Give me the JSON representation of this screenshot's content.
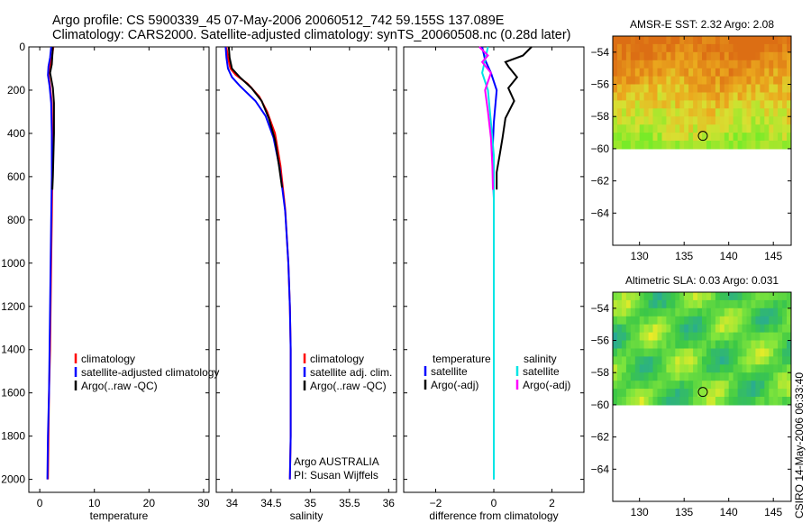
{
  "header": {
    "line1": "Argo profile: CS 5900339_45 07-May-2006 20060512_742 59.155S 137.089E",
    "line2": "Climatology: CARS2000. Satellite-adjusted climatology: synTS_20060508.nc (0.28d later)"
  },
  "side_stamp": "CSIRO 14-May-2006 06:33:40",
  "colors": {
    "clim": "#ff0000",
    "sat": "#0000ff",
    "argo": "#000000",
    "sal_sat": "#00e5e5",
    "sal_argo": "#ff00ff"
  },
  "chart_data": [
    {
      "type": "line",
      "name": "temperature-panel",
      "xlabel": "temperature",
      "xlim": [
        -2,
        31
      ],
      "ylim": [
        2060,
        0
      ],
      "xticks": [
        0,
        10,
        20,
        30
      ],
      "yticks": [
        0,
        200,
        400,
        600,
        800,
        1000,
        1200,
        1400,
        1600,
        1800,
        2000
      ],
      "ytick_labels": [
        "0",
        "200",
        "400",
        "600",
        "800",
        "1000",
        "1200",
        "1400",
        "1600",
        "1800",
        "2000"
      ],
      "legend": [
        "climatology",
        "satellite-adjusted climatology",
        "Argo(..raw -QC)"
      ],
      "series": [
        {
          "name": "climatology",
          "color_key": "clim",
          "x": [
            2.5,
            2.2,
            1.8,
            1.6,
            1.9,
            2.2,
            2.3,
            2.3,
            2.2,
            2.1,
            2.0,
            1.9,
            1.7,
            1.6,
            1.5
          ],
          "y": [
            0,
            50,
            90,
            130,
            180,
            260,
            400,
            600,
            800,
            1000,
            1200,
            1400,
            1600,
            1800,
            2000
          ]
        },
        {
          "name": "satellite-adjusted climatology",
          "color_key": "sat",
          "x": [
            2.1,
            1.9,
            1.6,
            1.5,
            1.8,
            2.1,
            2.2,
            2.2,
            2.1,
            2.0,
            1.9,
            1.8,
            1.7,
            1.5,
            1.4
          ],
          "y": [
            0,
            50,
            90,
            130,
            180,
            260,
            400,
            600,
            800,
            1000,
            1200,
            1400,
            1600,
            1800,
            2000
          ]
        },
        {
          "name": "Argo(..raw -QC)",
          "color_key": "argo",
          "x": [
            2.4,
            2.3,
            2.2,
            1.9,
            2.4,
            2.6,
            2.6,
            2.5,
            2.4,
            2.3
          ],
          "y": [
            0,
            40,
            80,
            120,
            190,
            260,
            400,
            500,
            600,
            660
          ]
        }
      ],
      "annotation": []
    },
    {
      "type": "line",
      "name": "salinity-panel",
      "xlabel": "salinity",
      "xlim": [
        33.8,
        36.1
      ],
      "ylim": [
        2060,
        0
      ],
      "xticks": [
        34,
        34.5,
        35,
        35.5,
        36
      ],
      "ytick_labels": [],
      "legend": [
        "climatology",
        "satellite adj. clim.",
        "Argo(..raw -QC)"
      ],
      "series": [
        {
          "name": "climatology",
          "color_key": "clim",
          "x": [
            33.93,
            33.95,
            33.98,
            34.05,
            34.2,
            34.35,
            34.45,
            34.55,
            34.62,
            34.68,
            34.72,
            34.74,
            34.75,
            34.75,
            34.75,
            34.74
          ],
          "y": [
            0,
            50,
            100,
            130,
            170,
            230,
            300,
            400,
            550,
            750,
            1000,
            1200,
            1400,
            1600,
            1800,
            2000
          ]
        },
        {
          "name": "satellite adj. clim.",
          "color_key": "sat",
          "x": [
            33.92,
            33.93,
            33.95,
            34.0,
            34.1,
            34.3,
            34.43,
            34.53,
            34.61,
            34.68,
            34.72,
            34.74,
            34.75,
            34.75,
            34.75,
            34.74
          ],
          "y": [
            0,
            50,
            100,
            140,
            180,
            250,
            320,
            420,
            560,
            760,
            1000,
            1200,
            1400,
            1600,
            1800,
            2000
          ]
        },
        {
          "name": "Argo(..raw -QC)",
          "color_key": "argo",
          "x": [
            33.96,
            33.97,
            34.0,
            34.1,
            34.25,
            34.38,
            34.47,
            34.55,
            34.6,
            34.64
          ],
          "y": [
            0,
            50,
            100,
            140,
            190,
            250,
            330,
            430,
            550,
            650
          ]
        }
      ],
      "annotation": [
        "Argo AUSTRALIA",
        "PI: Susan Wijffels"
      ]
    },
    {
      "type": "line",
      "name": "difference-panel",
      "xlabel": "difference from climatology",
      "xlim": [
        -3.1,
        3.1
      ],
      "ylim": [
        2060,
        0
      ],
      "xticks": [
        -2,
        0,
        2
      ],
      "ytick_labels": [],
      "legend_left": [
        "temperature",
        "satellite",
        "Argo(-adj)"
      ],
      "legend_right": [
        "salinity",
        "satellite",
        "Argo(-adj)"
      ],
      "series": [
        {
          "name": "temperature satellite",
          "color_key": "sat",
          "x": [
            -0.4,
            -0.3,
            -0.1,
            0.1,
            0.0,
            -0.05,
            0.0,
            0.0,
            0.0,
            0.0,
            0.0,
            0.0
          ],
          "y": [
            0,
            60,
            120,
            200,
            350,
            500,
            700,
            900,
            1200,
            1500,
            1800,
            2000
          ]
        },
        {
          "name": "temperature Argo(-adj)",
          "color_key": "argo",
          "x": [
            1.3,
            1.0,
            0.4,
            0.5,
            0.8,
            0.5,
            0.7,
            0.4,
            0.3,
            0.2,
            0.1,
            0.1
          ],
          "y": [
            0,
            40,
            70,
            90,
            140,
            190,
            250,
            330,
            420,
            500,
            580,
            660
          ]
        },
        {
          "name": "salinity satellite",
          "color_key": "sal_sat",
          "x": [
            -0.2,
            -0.3,
            -0.4,
            -0.2,
            -0.1,
            0.0,
            0.0,
            0.0,
            0.0,
            0.0,
            0.0
          ],
          "y": [
            0,
            60,
            120,
            200,
            350,
            500,
            800,
            1100,
            1400,
            1700,
            2000
          ]
        },
        {
          "name": "salinity Argo(-adj)",
          "color_key": "sal_argo",
          "x": [
            -0.5,
            -0.2,
            -0.4,
            -0.1,
            -0.3,
            -0.2,
            -0.1,
            -0.05,
            -0.03
          ],
          "y": [
            0,
            40,
            70,
            120,
            200,
            300,
            420,
            550,
            660
          ]
        }
      ],
      "annotation": []
    },
    {
      "type": "heatmap",
      "name": "sst-map",
      "title": "AMSR-E SST: 2.32 Argo: 2.08",
      "xlim": [
        127,
        147
      ],
      "ylim": [
        -66,
        -53
      ],
      "xticks": [
        130,
        135,
        140,
        145
      ],
      "yticks": [
        -54,
        -56,
        -58,
        -60,
        -62,
        -64
      ],
      "data_lat_range": [
        -60,
        -53
      ],
      "marker": {
        "lon": 137.1,
        "lat": -59.2
      }
    },
    {
      "type": "heatmap",
      "name": "sla-map",
      "title": "Altimetric SLA: 0.03 Argo: 0.031",
      "xlim": [
        127,
        147
      ],
      "ylim": [
        -66,
        -53
      ],
      "xticks": [
        130,
        135,
        140,
        145
      ],
      "yticks": [
        -54,
        -56,
        -58,
        -60,
        -62,
        -64
      ],
      "data_lat_range": [
        -60,
        -53
      ],
      "marker": {
        "lon": 137.1,
        "lat": -59.2
      }
    }
  ]
}
